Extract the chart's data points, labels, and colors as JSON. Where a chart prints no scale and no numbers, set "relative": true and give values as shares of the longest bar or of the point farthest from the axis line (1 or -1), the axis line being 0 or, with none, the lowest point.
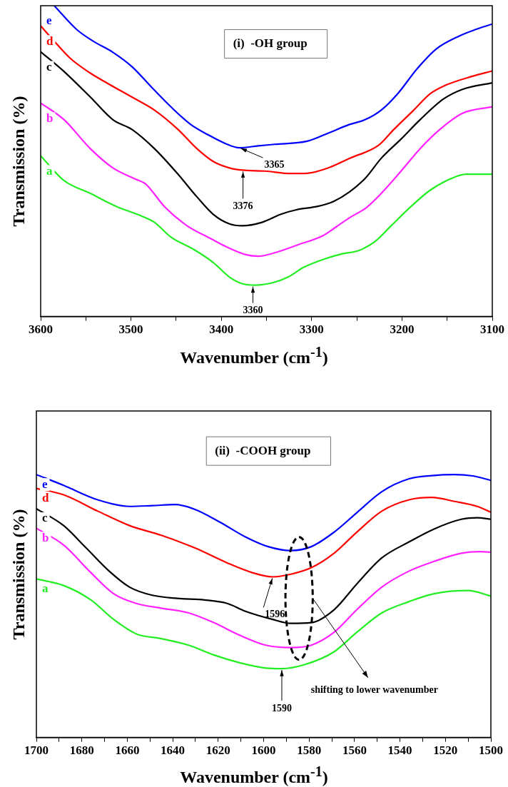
{
  "chart_data": [
    {
      "type": "line",
      "title": "(i)  -OH group",
      "xlabel": "Wavenumber (cm$^{-1}$)",
      "ylabel": "Transmission (%)",
      "relative": true,
      "marker": "none",
      "line_style": "solid",
      "legend": false,
      "grid": false,
      "tick_labels": "x",
      "xlim": [
        3600,
        3100
      ],
      "xticks": [
        3600,
        {
          "value": 3550,
          "label": null
        },
        3500,
        {
          "value": 3450,
          "label": null
        },
        3400,
        {
          "value": 3350,
          "label": null
        },
        3300,
        {
          "value": 3250,
          "label": null
        },
        3200,
        {
          "value": 3150,
          "label": null
        },
        3100
      ],
      "series": [
        {
          "name": "a",
          "color": "#22ee22",
          "x": [
            3600,
            3574,
            3545,
            3516,
            3488,
            3474,
            3456,
            3430,
            3409,
            3391,
            3377,
            3362,
            3344,
            3326,
            3309,
            3287,
            3266,
            3248,
            3230,
            3212,
            3190,
            3169,
            3147,
            3129,
            3115,
            3100
          ],
          "values": [
            0.517,
            0.437,
            0.396,
            0.354,
            0.323,
            0.303,
            0.256,
            0.215,
            0.174,
            0.127,
            0.106,
            0.101,
            0.108,
            0.127,
            0.158,
            0.184,
            0.202,
            0.212,
            0.241,
            0.292,
            0.354,
            0.406,
            0.442,
            0.458,
            0.458,
            0.458
          ]
        },
        {
          "name": "b",
          "color": "#ff22ff",
          "x": [
            3600,
            3574,
            3545,
            3520,
            3495,
            3484,
            3463,
            3438,
            3412,
            3395,
            3373,
            3359,
            3341,
            3316,
            3287,
            3276,
            3258,
            3240,
            3223,
            3201,
            3180,
            3158,
            3133,
            3100
          ],
          "values": [
            0.687,
            0.633,
            0.54,
            0.478,
            0.442,
            0.427,
            0.354,
            0.292,
            0.251,
            0.225,
            0.199,
            0.194,
            0.205,
            0.23,
            0.261,
            0.282,
            0.318,
            0.349,
            0.396,
            0.468,
            0.54,
            0.602,
            0.654,
            0.675
          ]
        },
        {
          "name": "c",
          "color": "#000000",
          "x": [
            3600,
            3574,
            3545,
            3520,
            3499,
            3474,
            3448,
            3427,
            3409,
            3391,
            3377,
            3355,
            3334,
            3316,
            3294,
            3276,
            3258,
            3240,
            3223,
            3201,
            3180,
            3154,
            3133,
            3100
          ],
          "values": [
            0.852,
            0.788,
            0.706,
            0.633,
            0.602,
            0.54,
            0.458,
            0.385,
            0.329,
            0.298,
            0.292,
            0.303,
            0.329,
            0.344,
            0.354,
            0.37,
            0.401,
            0.447,
            0.509,
            0.571,
            0.633,
            0.7,
            0.731,
            0.752
          ]
        },
        {
          "name": "d",
          "color": "#ff0000",
          "x": [
            3600,
            3585,
            3567,
            3545,
            3524,
            3499,
            3474,
            3448,
            3427,
            3409,
            3391,
            3377,
            3352,
            3323,
            3305,
            3280,
            3258,
            3226,
            3209,
            3187,
            3169,
            3151,
            3122,
            3100
          ],
          "values": [
            0.935,
            0.886,
            0.83,
            0.783,
            0.747,
            0.706,
            0.664,
            0.602,
            0.54,
            0.499,
            0.478,
            0.471,
            0.468,
            0.46,
            0.461,
            0.48,
            0.509,
            0.551,
            0.602,
            0.664,
            0.716,
            0.745,
            0.773,
            0.79
          ]
        },
        {
          "name": "e",
          "color": "#0000ff",
          "x": [
            3585,
            3560,
            3542,
            3520,
            3499,
            3477,
            3456,
            3434,
            3413,
            3395,
            3380,
            3359,
            3341,
            3305,
            3280,
            3258,
            3241,
            3223,
            3205,
            3183,
            3162,
            3137,
            3119,
            3100
          ],
          "values": [
            1,
            0.923,
            0.886,
            0.85,
            0.804,
            0.737,
            0.675,
            0.618,
            0.582,
            0.556,
            0.543,
            0.549,
            0.554,
            0.564,
            0.592,
            0.618,
            0.633,
            0.664,
            0.716,
            0.798,
            0.861,
            0.902,
            0.923,
            0.941
          ]
        }
      ],
      "annotations": [
        {
          "text": "3365",
          "x": 3380,
          "y": 0.543
        },
        {
          "text": "3376",
          "x": 3376,
          "y": 0.471
        },
        {
          "text": "3360",
          "x": 3365,
          "y": 0.101
        }
      ]
    },
    {
      "type": "line",
      "title": "(ii)  -COOH group",
      "xlabel": "Wavenumber (cm$^{-1}$)",
      "ylabel": "Transmission (%)",
      "relative": true,
      "marker": "none",
      "line_style": "solid",
      "legend": false,
      "grid": false,
      "tick_labels": "x",
      "xlim": [
        1700,
        1500
      ],
      "xticks": [
        1700,
        {
          "value": 1690,
          "label": null
        },
        1680,
        {
          "value": 1670,
          "label": null
        },
        1660,
        {
          "value": 1650,
          "label": null
        },
        1640,
        {
          "value": 1630,
          "label": null
        },
        1620,
        {
          "value": 1610,
          "label": null
        },
        1600,
        {
          "value": 1590,
          "label": null
        },
        1580,
        {
          "value": 1570,
          "label": null
        },
        1560,
        {
          "value": 1550,
          "label": null
        },
        1540,
        {
          "value": 1530,
          "label": null
        },
        1520,
        {
          "value": 1510,
          "label": null
        },
        1500
      ],
      "series": [
        {
          "name": "a",
          "color": "#22ee22",
          "x": [
            1700,
            1688,
            1676,
            1666,
            1656,
            1645,
            1633,
            1622,
            1610,
            1599,
            1592,
            1582,
            1569,
            1559,
            1548,
            1536,
            1525,
            1510,
            1500
          ],
          "values": [
            0.603,
            0.578,
            0.523,
            0.449,
            0.394,
            0.376,
            0.351,
            0.314,
            0.283,
            0.264,
            0.262,
            0.277,
            0.326,
            0.4,
            0.474,
            0.517,
            0.547,
            0.559,
            0.538
          ]
        },
        {
          "name": "b",
          "color": "#ff22ff",
          "x": [
            1700,
            1688,
            1676,
            1666,
            1656,
            1645,
            1633,
            1622,
            1610,
            1599,
            1588,
            1579,
            1569,
            1559,
            1548,
            1536,
            1525,
            1513,
            1505,
            1500
          ],
          "values": [
            0.796,
            0.732,
            0.627,
            0.547,
            0.51,
            0.492,
            0.474,
            0.437,
            0.387,
            0.351,
            0.342,
            0.351,
            0.4,
            0.486,
            0.572,
            0.633,
            0.67,
            0.701,
            0.707,
            0.705
          ]
        },
        {
          "name": "c",
          "color": "#000000",
          "x": [
            1700,
            1688,
            1678,
            1668,
            1659,
            1649,
            1638,
            1626,
            1616,
            1608,
            1596,
            1588,
            1579,
            1569,
            1559,
            1548,
            1536,
            1525,
            1513,
            1506,
            1500
          ],
          "values": [
            0.87,
            0.806,
            0.72,
            0.633,
            0.572,
            0.541,
            0.529,
            0.523,
            0.51,
            0.48,
            0.449,
            0.434,
            0.437,
            0.486,
            0.584,
            0.683,
            0.744,
            0.793,
            0.83,
            0.836,
            0.83
          ]
        },
        {
          "name": "d",
          "color": "#ff0000",
          "x": [
            1700,
            1688,
            1673,
            1659,
            1645,
            1630,
            1616,
            1605,
            1596,
            1588,
            1579,
            1569,
            1559,
            1548,
            1536,
            1526,
            1516,
            1506,
            1500
          ],
          "values": [
            0.947,
            0.923,
            0.861,
            0.806,
            0.769,
            0.72,
            0.664,
            0.627,
            0.611,
            0.621,
            0.646,
            0.701,
            0.781,
            0.861,
            0.904,
            0.913,
            0.898,
            0.879,
            0.857
          ]
        },
        {
          "name": "e",
          "color": "#0000ff",
          "x": [
            1700,
            1688,
            1673,
            1659,
            1649,
            1639,
            1630,
            1619,
            1608,
            1598,
            1588,
            1579,
            1569,
            1559,
            1548,
            1536,
            1526,
            1516,
            1508,
            1500
          ],
          "values": [
            1,
            0.959,
            0.904,
            0.879,
            0.882,
            0.886,
            0.867,
            0.818,
            0.763,
            0.726,
            0.711,
            0.726,
            0.781,
            0.855,
            0.935,
            0.984,
            0.996,
            1,
            0.995,
            0.978
          ]
        }
      ],
      "annotations": [
        {
          "text": "1596",
          "x": 1596,
          "y": 0.611
        },
        {
          "text": "1590",
          "x": 1592,
          "y": 0.262
        },
        "shifting to lower wavenumber"
      ]
    }
  ]
}
